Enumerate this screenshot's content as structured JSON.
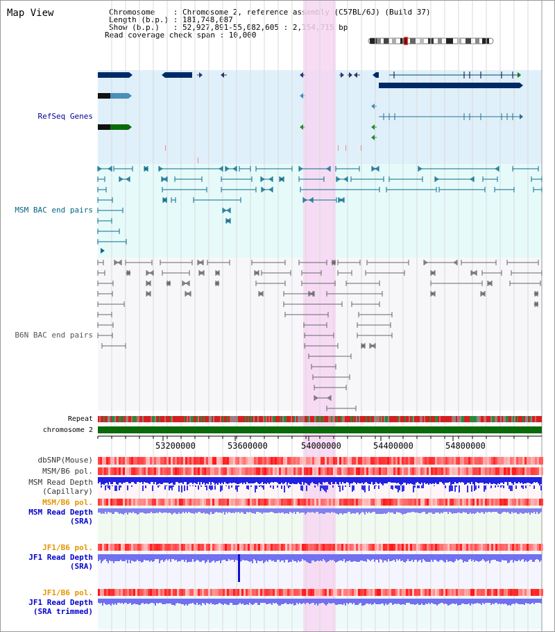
{
  "page": {
    "title": "Map View"
  },
  "info": {
    "line1": "Chromosome    : Chromosome 2, reference assembly (C57BL/6J) (Build 37)",
    "line2": "Length (b.p.) : 181,748,087",
    "line3": "Show (b.p.)   : 52,927,891-55,082,605 : 2,154,715 bp",
    "line4": "Read coverage check span : 10,000"
  },
  "tracks": {
    "refseq": "RefSeq Genes",
    "msm_bac": "MSM BAC end pairs",
    "b6n_bac": "B6N BAC end pairs",
    "repeat": "Repeat",
    "chromosome": "chromosome 2",
    "dbsnp": "dbSNP(Mouse)",
    "msm_pol1": "MSM/B6 pol.",
    "msm_depth_cap": "MSM Read Depth\n(Capillary)",
    "msm_pol2": "MSM/B6 pol.",
    "msm_depth_sra": "MSM Read Depth\n(SRA)",
    "jf1_pol1": "JF1/B6 pol.",
    "jf1_depth_sra": "JF1 Read Depth\n(SRA)",
    "jf1_pol2": "JF1/B6 pol.",
    "jf1_depth_trim": "JF1 Read Depth\n(SRA trimmed)"
  },
  "axis": {
    "ticks": [
      "53200000",
      "53600000",
      "54000000",
      "54400000",
      "54800000"
    ]
  },
  "colors": {
    "refseq": "#000099",
    "msm": "#006680",
    "b6n": "#555555",
    "orange": "#e69500",
    "blue": "#0000cc",
    "highlight": "#f7d6f2"
  }
}
